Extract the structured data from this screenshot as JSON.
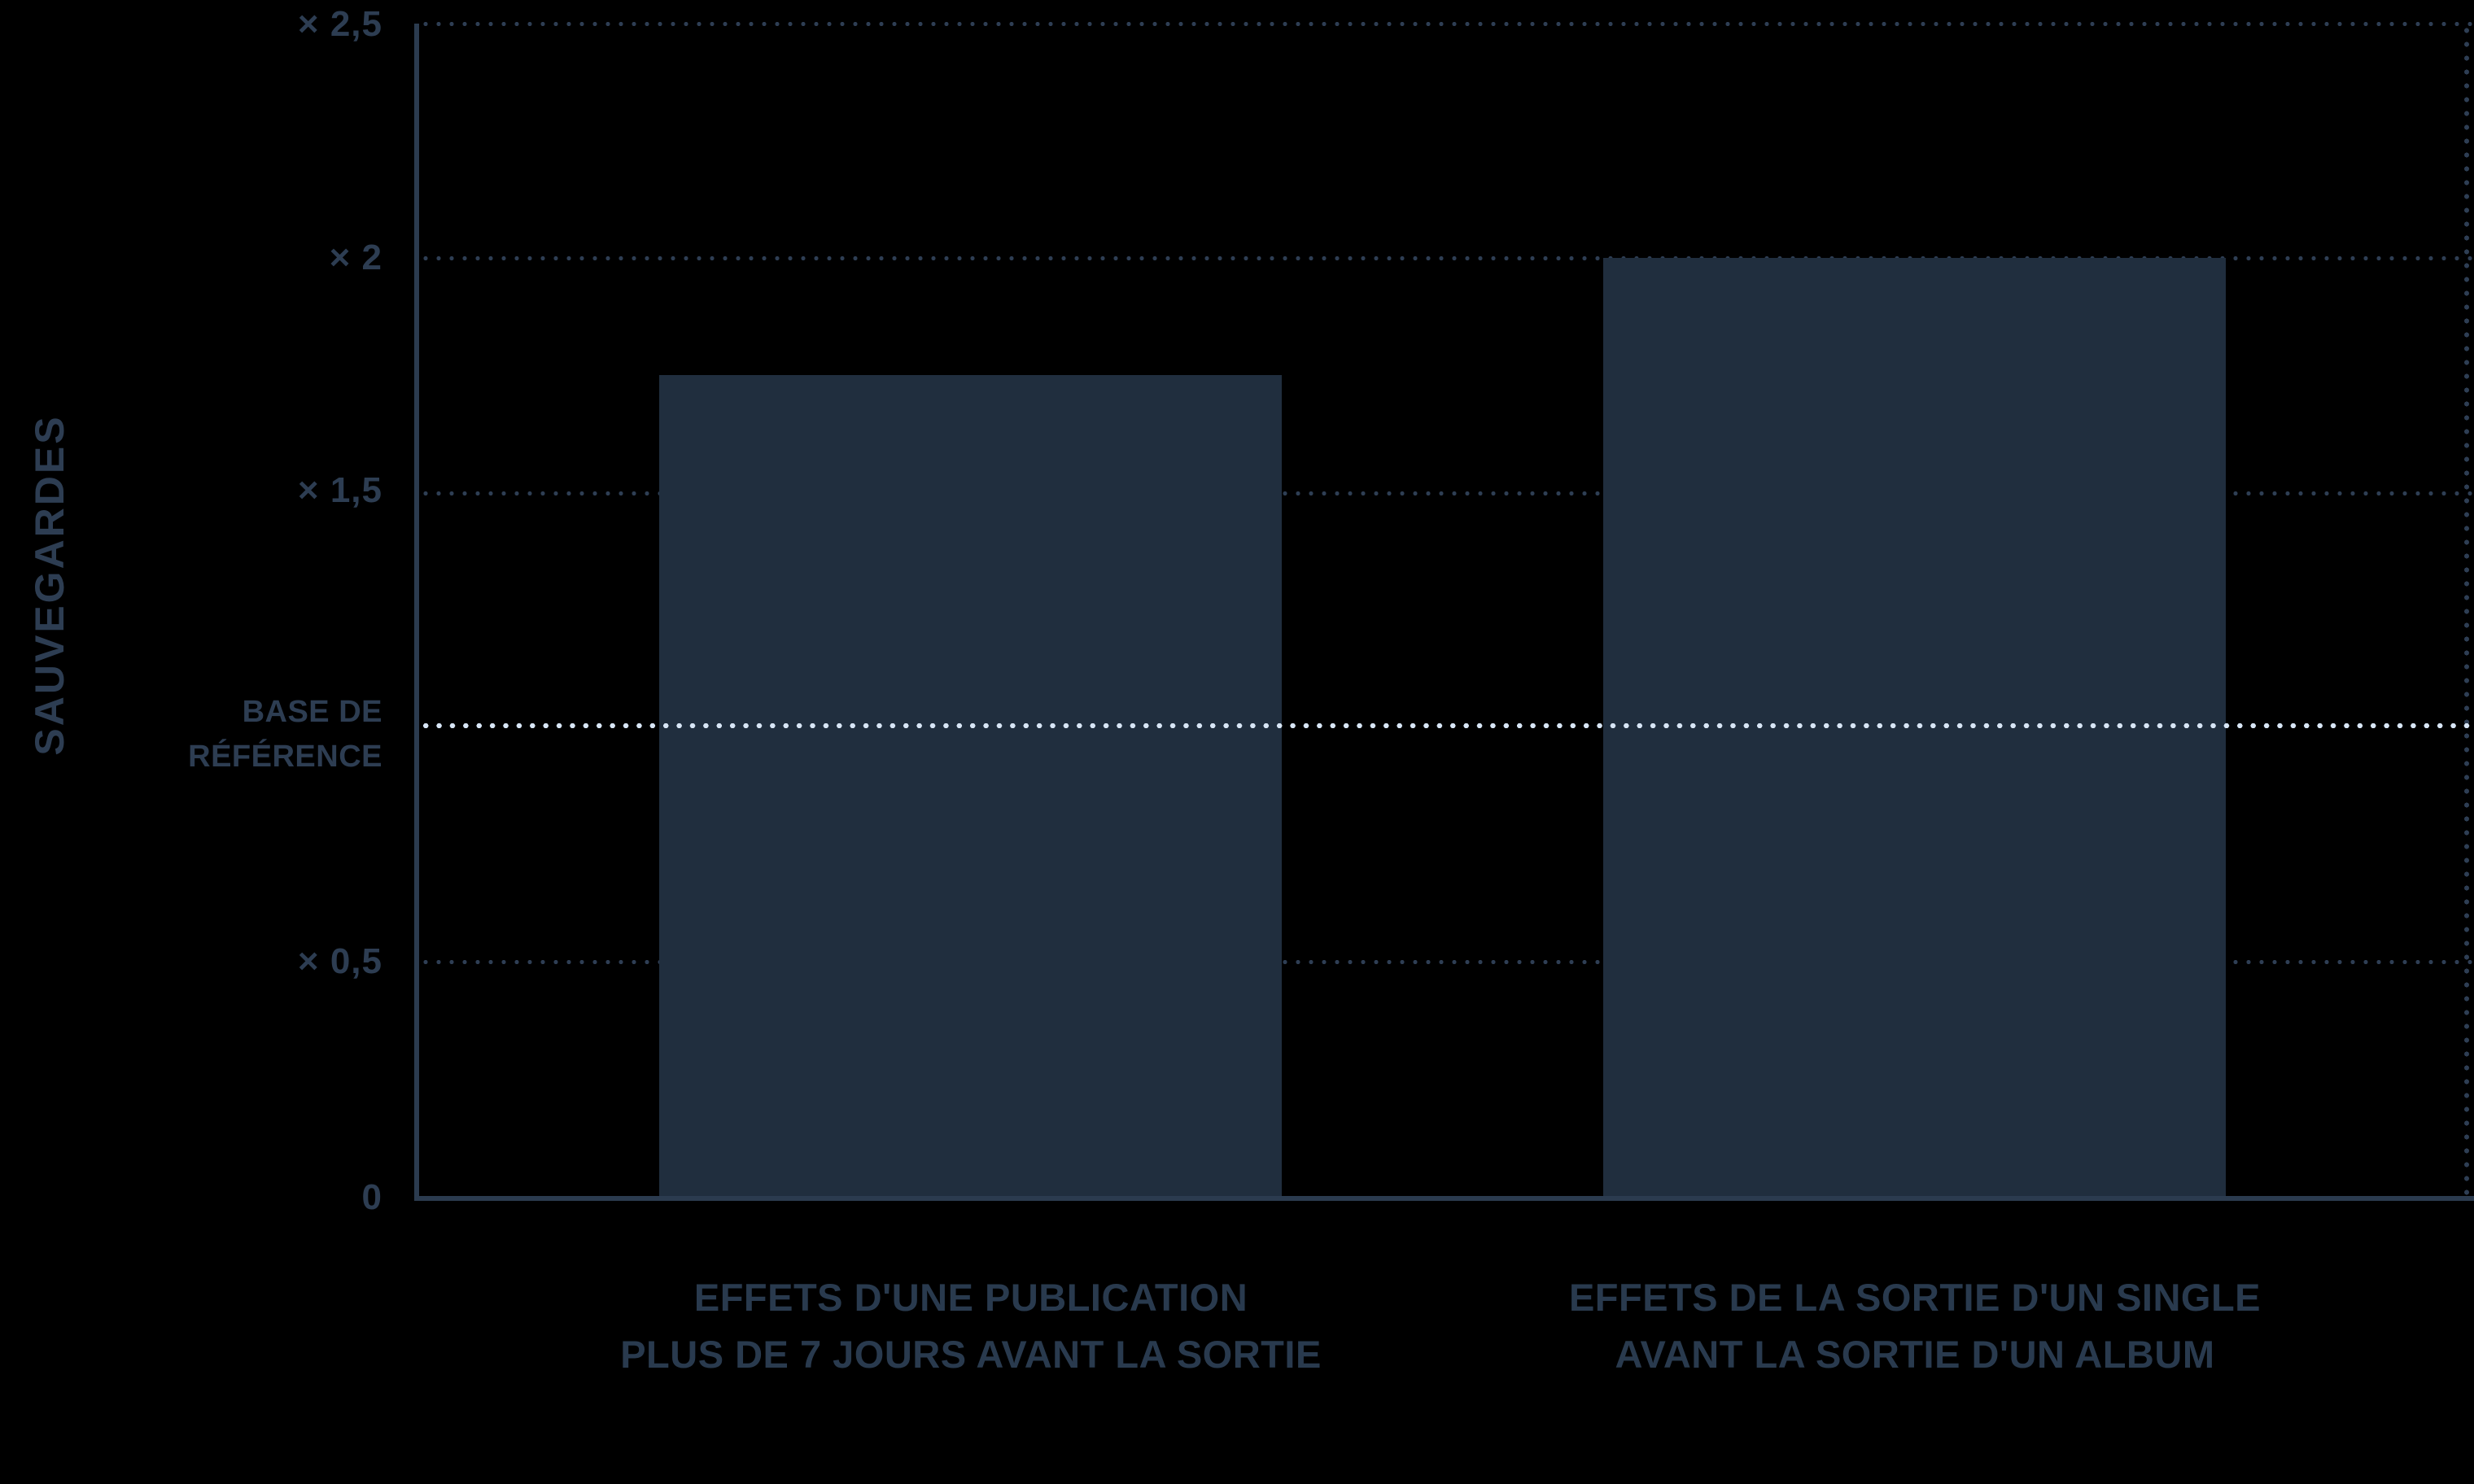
{
  "chart_data": {
    "type": "bar",
    "title": "",
    "ylabel": "SAUVEGARDES",
    "xlabel": "",
    "ylim": [
      0,
      2.5
    ],
    "grid": "dotted horizontal gridlines at 0.5, 1.5, 2, 2.5; highlighted light dotted baseline at 1; dotted right border",
    "legend_position": "none",
    "baseline": {
      "value": 1,
      "label_line1": "BASE DE",
      "label_line2": "RÉFÉRENCE"
    },
    "yticks": [
      {
        "value": 2.5,
        "label": "× 2,5"
      },
      {
        "value": 2,
        "label": "× 2"
      },
      {
        "value": 1.5,
        "label": "× 1,5"
      },
      {
        "value": 0.5,
        "label": "× 0,5"
      },
      {
        "value": 0,
        "label": "0"
      }
    ],
    "categories": [
      {
        "line1": "EFFETS D'UNE PUBLICATION",
        "line2": "PLUS DE 7 JOURS AVANT LA SORTIE"
      },
      {
        "line1": "EFFETS DE LA SORTIE D'UN SINGLE",
        "line2": "AVANT LA SORTIE D'UN ALBUM"
      }
    ],
    "values": [
      1.75,
      2
    ],
    "colors": {
      "background": "#000000",
      "bar": "#202e3e",
      "axis_line": "#2b3b4f",
      "grid_dots": "#2e3e54",
      "baseline_dots": "#d7e5f5",
      "tick_text": "#2d3d52",
      "category_text": "#293a4e"
    }
  }
}
